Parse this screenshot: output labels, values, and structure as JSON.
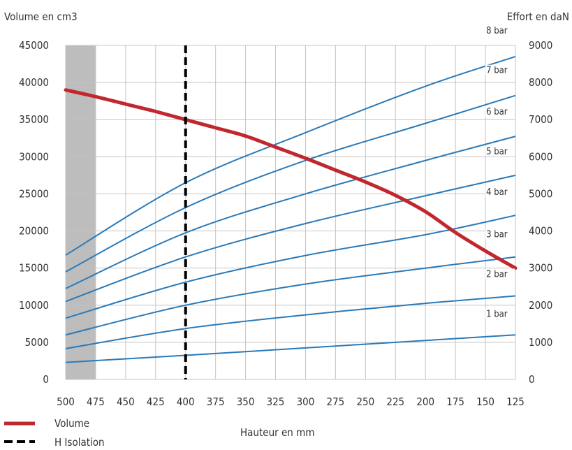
{
  "chart_data": {
    "type": "line",
    "ylabel_left": "Volume en cm3",
    "ylabel_right": "Effort en daN",
    "xlabel": "Hauteur en mm",
    "x_ticks": [
      500,
      475,
      450,
      425,
      400,
      375,
      350,
      325,
      300,
      275,
      250,
      225,
      200,
      175,
      150,
      125
    ],
    "xlim": [
      500,
      125
    ],
    "y_left_ticks": [
      0,
      5000,
      10000,
      15000,
      20000,
      25000,
      30000,
      35000,
      40000,
      45000
    ],
    "y_left_lim": [
      0,
      45000
    ],
    "y_right_ticks": [
      0,
      1000,
      2000,
      3000,
      4000,
      5000,
      6000,
      7000,
      8000,
      9000
    ],
    "y_right_lim": [
      0,
      9000
    ],
    "grid": true,
    "shaded_region": {
      "x": [
        500,
        475
      ],
      "color": "#bdbdbd"
    },
    "vertical_line": {
      "x": 400,
      "name": "H Isolation",
      "color": "#000000",
      "style": "dashed"
    },
    "volume_series": {
      "name": "Volume",
      "axis": "left",
      "color": "#c1272d",
      "x": [
        500,
        475,
        450,
        425,
        400,
        375,
        350,
        325,
        300,
        275,
        250,
        225,
        200,
        175,
        150,
        125
      ],
      "values": [
        39000,
        38100,
        37100,
        36100,
        35000,
        33900,
        32800,
        31300,
        29800,
        28200,
        26600,
        24800,
        22600,
        19800,
        17300,
        15000
      ]
    },
    "force_series_color": "#2a7ab9",
    "force_series": [
      {
        "name": "1 bar",
        "axis": "right",
        "x": [
          500,
          400,
          300,
          200,
          125
        ],
        "values": [
          460,
          650,
          850,
          1050,
          1200
        ]
      },
      {
        "name": "2 bar",
        "axis": "right",
        "x": [
          500,
          400,
          300,
          200,
          125
        ],
        "values": [
          830,
          1370,
          1740,
          2050,
          2250
        ]
      },
      {
        "name": "3 bar",
        "axis": "right",
        "x": [
          500,
          400,
          300,
          200,
          125
        ],
        "values": [
          1200,
          2000,
          2570,
          3000,
          3300
        ]
      },
      {
        "name": "4 bar",
        "axis": "right",
        "x": [
          500,
          400,
          300,
          200,
          125
        ],
        "values": [
          1650,
          2620,
          3340,
          3900,
          4420
        ]
      },
      {
        "name": "5 bar",
        "axis": "right",
        "x": [
          500,
          400,
          300,
          200,
          125
        ],
        "values": [
          2100,
          3300,
          4200,
          4950,
          5500
        ]
      },
      {
        "name": "6 bar",
        "axis": "right",
        "x": [
          500,
          400,
          300,
          200,
          125
        ],
        "values": [
          2450,
          3950,
          5000,
          5900,
          6550
        ]
      },
      {
        "name": "7 bar",
        "axis": "right",
        "x": [
          500,
          400,
          300,
          200,
          125
        ],
        "values": [
          2900,
          4630,
          5900,
          6900,
          7650
        ]
      },
      {
        "name": "8 bar",
        "axis": "right",
        "x": [
          500,
          400,
          300,
          200,
          125
        ],
        "values": [
          3350,
          5300,
          6650,
          7900,
          8700
        ]
      }
    ],
    "legend": [
      {
        "label": "Volume",
        "color": "#c1272d",
        "style": "solid"
      },
      {
        "label": "H Isolation",
        "color": "#000000",
        "style": "dashed"
      }
    ]
  }
}
